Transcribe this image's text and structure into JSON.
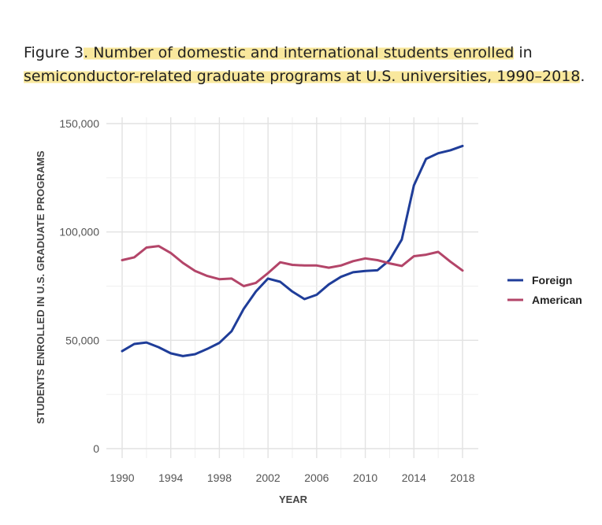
{
  "caption": {
    "prefix": "Figure 3",
    "highlighted_1": ". Number of domestic and international students enrolled",
    "middle": " in ",
    "highlighted_2": "semiconductor-related graduate programs at U.S. universities, 1990–2018",
    "suffix": "."
  },
  "chart_data": {
    "type": "line",
    "title": "",
    "xlabel": "YEAR",
    "ylabel": "STUDENTS ENROLLED IN U.S. GRADUATE PROGRAMS",
    "xlim": [
      1990,
      2018
    ],
    "ylim": [
      0,
      150000
    ],
    "x_ticks": [
      1990,
      1994,
      1998,
      2002,
      2006,
      2010,
      2014,
      2018
    ],
    "x_tick_labels": [
      "1990",
      "1994",
      "1998",
      "2002",
      "2006",
      "2010",
      "2014",
      "2018"
    ],
    "y_ticks": [
      0,
      50000,
      100000,
      150000
    ],
    "y_tick_labels": [
      "0",
      "50,000",
      "100,000",
      "150,000"
    ],
    "grid": true,
    "legend_position": "right",
    "x": [
      1990,
      1991,
      1992,
      1993,
      1994,
      1995,
      1996,
      1997,
      1998,
      1999,
      2000,
      2001,
      2002,
      2003,
      2004,
      2005,
      2006,
      2007,
      2008,
      2009,
      2010,
      2011,
      2012,
      2013,
      2014,
      2015,
      2016,
      2017,
      2018
    ],
    "series": [
      {
        "name": "Foreign",
        "color": "#1f3d99",
        "values": [
          45000,
          48300,
          49000,
          46800,
          44000,
          42700,
          43600,
          46000,
          48800,
          54200,
          64500,
          72500,
          78500,
          77000,
          72500,
          69000,
          71000,
          75800,
          79300,
          81400,
          82000,
          82300,
          87000,
          96500,
          121500,
          133700,
          136300,
          137700,
          139700
        ]
      },
      {
        "name": "American",
        "color": "#b34569",
        "values": [
          87000,
          88300,
          92800,
          93500,
          90300,
          85700,
          82000,
          79700,
          78200,
          78500,
          75000,
          76500,
          81000,
          86000,
          84800,
          84500,
          84500,
          83500,
          84500,
          86500,
          87800,
          87000,
          85500,
          84300,
          88800,
          89500,
          90800,
          86300,
          82200
        ]
      }
    ]
  }
}
